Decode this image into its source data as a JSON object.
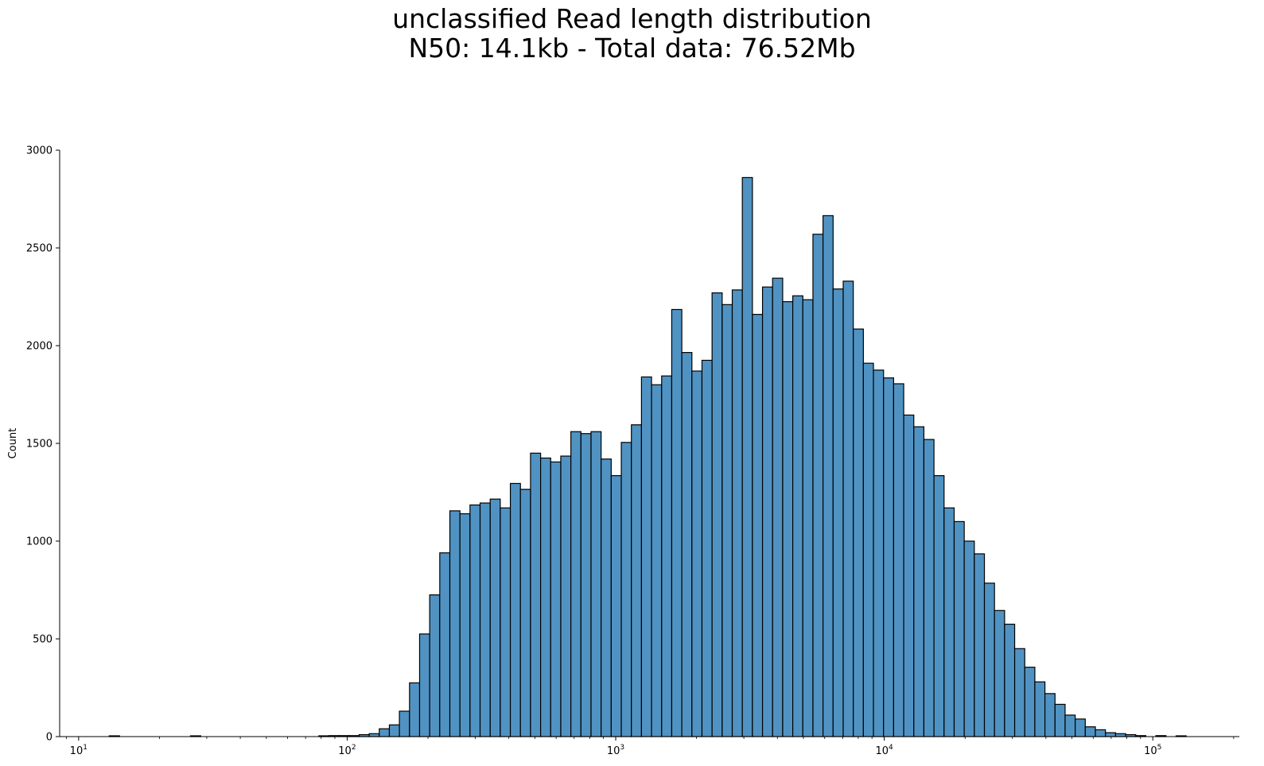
{
  "chart_data": {
    "type": "bar",
    "title": "unclassified Read length distribution",
    "subtitle": "N50: 14.1kb - Total data: 76.52Mb",
    "xlabel": "",
    "ylabel": "Count",
    "xscale": "log",
    "xlim": [
      8.5,
      210000
    ],
    "ylim": [
      0,
      3000
    ],
    "grid": false,
    "legend": "none",
    "bar_color": "#5093c3",
    "edge_color": "#000000",
    "y_ticks": [
      0,
      500,
      1000,
      1500,
      2000,
      2500,
      3000
    ],
    "x_ticks": [
      {
        "base": "10",
        "exp": "1",
        "value": 10
      },
      {
        "base": "10",
        "exp": "2",
        "value": 100
      },
      {
        "base": "10",
        "exp": "3",
        "value": 1000
      },
      {
        "base": "10",
        "exp": "4",
        "value": 10000
      },
      {
        "base": "10",
        "exp": "5",
        "value": 100000
      }
    ],
    "bin_edges": [
      13.0,
      14.2,
      26.1,
      28.5,
      78.4,
      85.5,
      93.2,
      101.6,
      110.8,
      120.8,
      131.7,
      143.6,
      156.5,
      170.7,
      186.1,
      202.9,
      221.2,
      241.2,
      263.0,
      286.7,
      312.6,
      340.9,
      371.6,
      405.2,
      441.8,
      481.7,
      525.2,
      572.6,
      624.4,
      680.8,
      742.2,
      809.3,
      882.4,
      962.1,
      1049.0,
      1143.8,
      1247.1,
      1359.7,
      1482.6,
      1616.5,
      1762.5,
      1921.7,
      2095.3,
      2284.6,
      2491.0,
      2716.0,
      2961.4,
      3228.9,
      3520.6,
      3838.6,
      4185.4,
      4563.5,
      4975.7,
      5425.2,
      5915.3,
      6449.7,
      7032.3,
      7667.6,
      8360.2,
      9115.5,
      9938.9,
      10836.8,
      11815.7,
      12883.0,
      14046.8,
      15315.7,
      16699.3,
      18207.8,
      19852.6,
      21646.0,
      23601.4,
      25733.4,
      28058.0,
      30592.6,
      33356.1,
      36369.3,
      39654.7,
      43236.8,
      47142.6,
      51401.2,
      56044.5,
      61107.2,
      66627.4,
      72646.2,
      79208.7,
      86363.9,
      94165.5,
      102671.9,
      111946.7,
      122059.3,
      133085.5
    ],
    "bin_counts": [
      4,
      0,
      4,
      0,
      4,
      5,
      5,
      5,
      10,
      15,
      40,
      60,
      130,
      275,
      525,
      725,
      940,
      1155,
      1140,
      1185,
      1195,
      1215,
      1170,
      1295,
      1265,
      1450,
      1425,
      1405,
      1435,
      1560,
      1550,
      1560,
      1420,
      1335,
      1505,
      1595,
      1840,
      1800,
      1845,
      2185,
      1965,
      1870,
      1925,
      2270,
      2210,
      2285,
      2860,
      2160,
      2300,
      2345,
      2225,
      2255,
      2235,
      2570,
      2665,
      2290,
      2330,
      2085,
      1910,
      1875,
      1835,
      1805,
      1645,
      1585,
      1520,
      1335,
      1170,
      1100,
      1000,
      935,
      785,
      645,
      575,
      450,
      355,
      280,
      220,
      165,
      110,
      90,
      50,
      35,
      20,
      15,
      10,
      5,
      0,
      5,
      0,
      4
    ]
  }
}
